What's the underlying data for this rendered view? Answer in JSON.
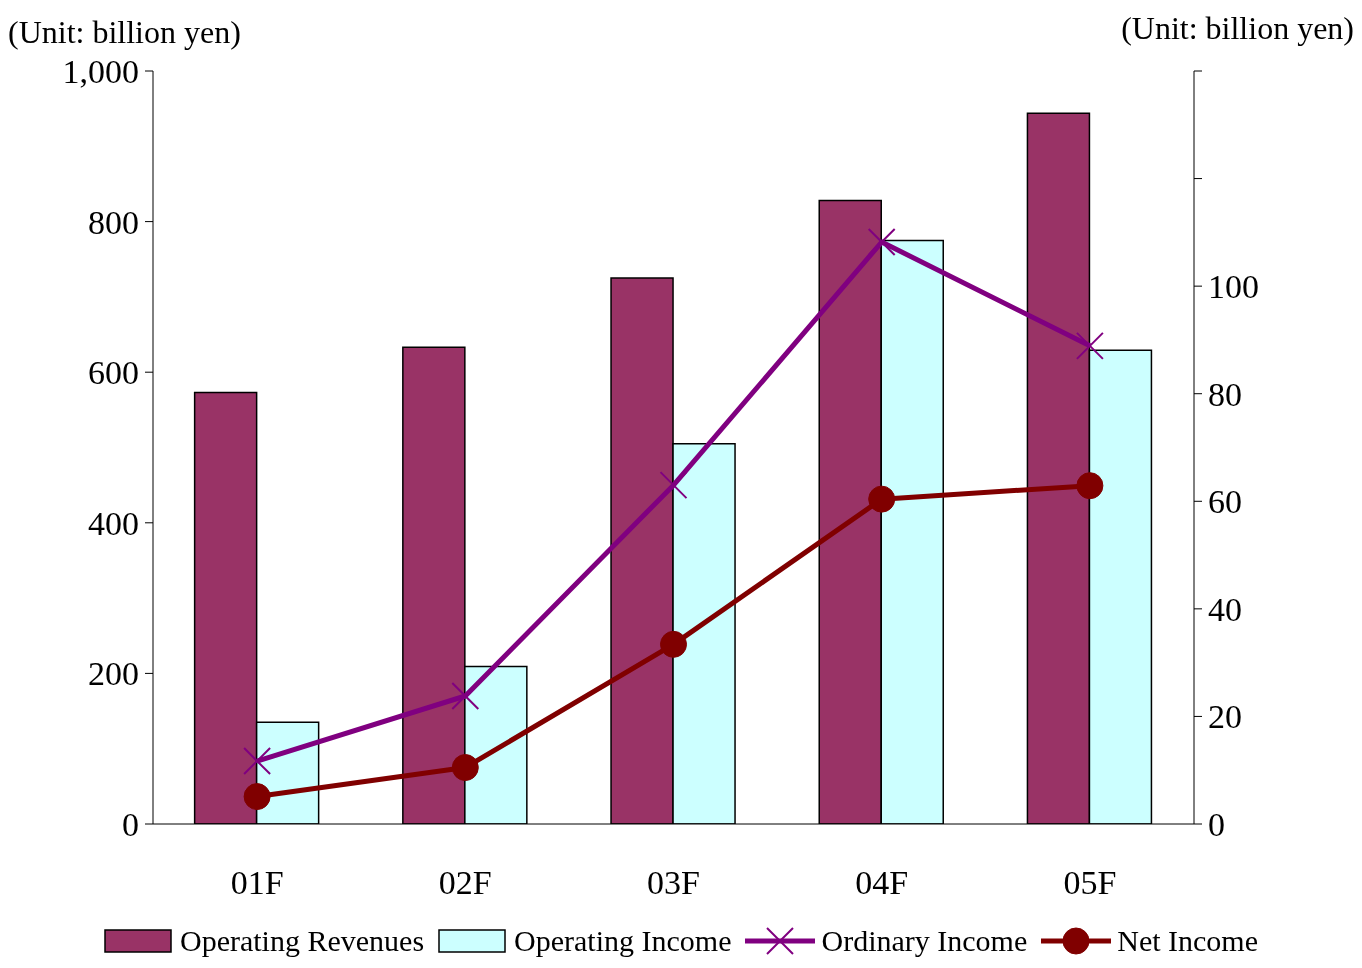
{
  "chart_data": {
    "type": "bar",
    "categories": [
      "01F",
      "02F",
      "03F",
      "04F",
      "05F"
    ],
    "ylabel": "(Unit: billion yen)",
    "y2label": "(Unit: billion yen)",
    "ylim": [
      0,
      1000
    ],
    "yticks": [
      0,
      200,
      400,
      600,
      800,
      {
        "value": 1000,
        "label": "1,000"
      }
    ],
    "y2lim": [
      0,
      140
    ],
    "y2ticks": [
      0,
      20,
      40,
      60,
      80,
      100,
      {
        "value": 120,
        "label": null
      },
      {
        "value": 140,
        "label": null
      }
    ],
    "grid": false,
    "legend": "bottom",
    "series": [
      {
        "name": "Operating Revenues",
        "color": "#993366",
        "values": [
          573,
          633,
          725,
          828,
          944
        ]
      },
      {
        "name": "Operating Income",
        "color": "#ccffff",
        "values": [
          135,
          209,
          505,
          775,
          629
        ]
      },
      {
        "name": "Ordinary Income",
        "type": "line",
        "axis": "y2",
        "marker": "cross",
        "color": "#800080",
        "values": [
          11.7,
          23.8,
          63,
          108.2,
          88.9
        ]
      },
      {
        "name": "Net Income",
        "type": "line",
        "axis": "y2",
        "marker": "circle",
        "color": "#800000",
        "values": [
          5.1,
          10.5,
          33.4,
          60.4,
          62.9
        ]
      }
    ]
  }
}
